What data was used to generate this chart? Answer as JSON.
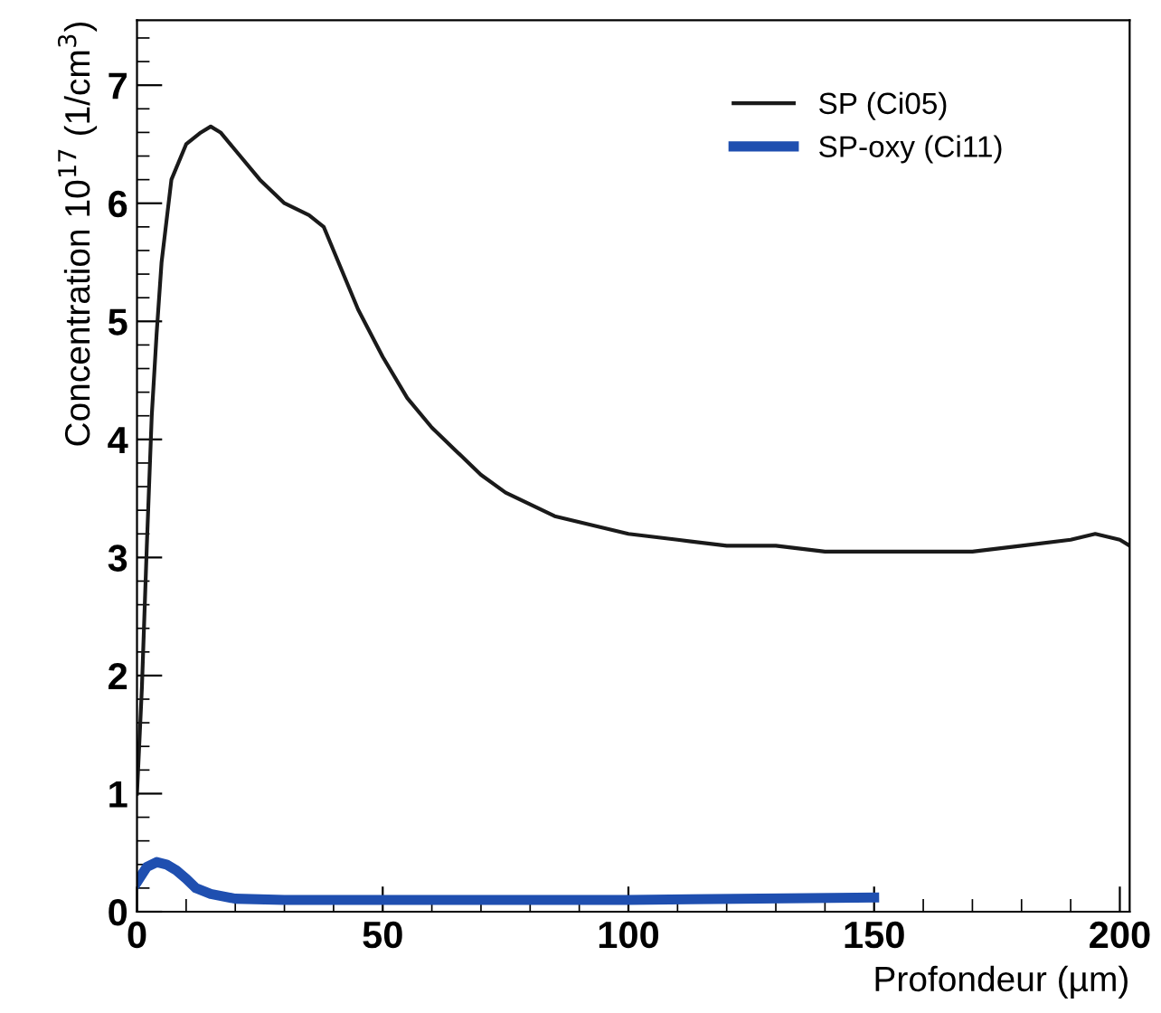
{
  "chart_data": {
    "type": "line",
    "xlabel": "Profondeur (µm)",
    "ylabel": "Concentration 10$^{17}$ (1/cm$^{3}$)",
    "xlim": [
      0,
      202
    ],
    "ylim": [
      0,
      7.55
    ],
    "xticks": [
      0,
      50,
      100,
      150,
      200
    ],
    "yticks": [
      0,
      1,
      2,
      3,
      4,
      5,
      6,
      7
    ],
    "legend": "top right",
    "grid": false,
    "series": [
      {
        "name": "SP (Ci05)",
        "color": "#1a1a1a",
        "x": [
          0,
          1,
          1.5,
          2,
          3,
          4,
          5,
          7,
          10,
          13,
          15,
          17,
          20,
          25,
          30,
          35,
          38,
          40,
          45,
          50,
          55,
          60,
          65,
          70,
          75,
          80,
          85,
          90,
          100,
          110,
          120,
          130,
          140,
          150,
          160,
          170,
          180,
          190,
          195,
          200,
          202
        ],
        "values": [
          1.0,
          1.9,
          2.5,
          3.1,
          4.2,
          4.9,
          5.5,
          6.2,
          6.5,
          6.6,
          6.65,
          6.6,
          6.45,
          6.2,
          6.0,
          5.9,
          5.8,
          5.6,
          5.1,
          4.7,
          4.35,
          4.1,
          3.9,
          3.7,
          3.55,
          3.45,
          3.35,
          3.3,
          3.2,
          3.15,
          3.1,
          3.1,
          3.05,
          3.05,
          3.05,
          3.05,
          3.1,
          3.15,
          3.2,
          3.15,
          3.1
        ]
      },
      {
        "name": "SP-oxy (Ci11)",
        "color": "#1f4fb0",
        "x": [
          0,
          2,
          4,
          6,
          8,
          10,
          12,
          15,
          20,
          30,
          50,
          100,
          150
        ],
        "values": [
          0.25,
          0.38,
          0.42,
          0.4,
          0.35,
          0.28,
          0.2,
          0.15,
          0.11,
          0.1,
          0.1,
          0.1,
          0.12
        ]
      }
    ]
  }
}
